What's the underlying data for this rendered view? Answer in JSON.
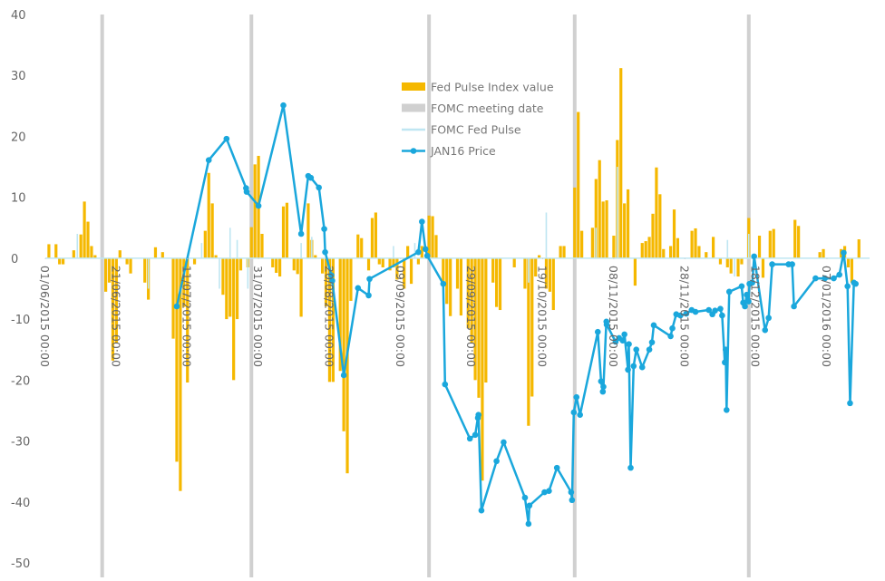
{
  "chart_data": {
    "type": "combo",
    "xlim": [
      "2015-06-01",
      "2016-01-19"
    ],
    "xticks": [
      {
        "value": "2015-06-01",
        "label": "01/06/2015 00:00"
      },
      {
        "value": "2015-06-21",
        "label": "21/06/2015 00:00"
      },
      {
        "value": "2015-07-11",
        "label": "11/07/2015 00:00"
      },
      {
        "value": "2015-07-31",
        "label": "31/07/2015 00:00"
      },
      {
        "value": "2015-08-20",
        "label": "20/08/2015 00:00"
      },
      {
        "value": "2015-09-09",
        "label": "09/09/2015 00:00"
      },
      {
        "value": "2015-09-29",
        "label": "29/09/2015 00:00"
      },
      {
        "value": "2015-10-19",
        "label": "19/10/2015 00:00"
      },
      {
        "value": "2015-11-08",
        "label": "08/11/2015 00:00"
      },
      {
        "value": "2015-11-28",
        "label": "28/11/2015 00:00"
      },
      {
        "value": "2015-12-18",
        "label": "18/12/2015 00:00"
      },
      {
        "value": "2016-01-07",
        "label": "07/01/2016 00:00"
      }
    ],
    "ylim": [
      -50,
      40
    ],
    "yticks": [
      -50,
      -40,
      -30,
      -20,
      -10,
      0,
      10,
      20,
      30,
      40
    ],
    "series": [
      {
        "name": "Fed Pulse Index value",
        "type": "bar",
        "color": "#f5b800",
        "x": [
          "2015-06-02",
          "2015-06-04",
          "2015-06-05",
          "2015-06-06",
          "2015-06-09",
          "2015-06-11",
          "2015-06-12",
          "2015-06-13",
          "2015-06-14",
          "2015-06-15",
          "2015-06-18",
          "2015-06-19",
          "2015-06-20",
          "2015-06-21",
          "2015-06-22",
          "2015-06-24",
          "2015-06-25",
          "2015-06-29",
          "2015-06-30",
          "2015-07-02",
          "2015-07-04",
          "2015-07-07",
          "2015-07-08",
          "2015-07-09",
          "2015-07-10",
          "2015-07-11",
          "2015-07-13",
          "2015-07-16",
          "2015-07-17",
          "2015-07-18",
          "2015-07-19",
          "2015-07-21",
          "2015-07-22",
          "2015-07-23",
          "2015-07-24",
          "2015-07-25",
          "2015-07-26",
          "2015-07-28",
          "2015-07-29",
          "2015-07-30",
          "2015-07-31",
          "2015-08-01",
          "2015-08-04",
          "2015-08-05",
          "2015-08-06",
          "2015-08-07",
          "2015-08-08",
          "2015-08-10",
          "2015-08-11",
          "2015-08-12",
          "2015-08-14",
          "2015-08-15",
          "2015-08-16",
          "2015-08-18",
          "2015-08-19",
          "2015-08-20",
          "2015-08-21",
          "2015-08-23",
          "2015-08-24",
          "2015-08-25",
          "2015-08-26",
          "2015-08-28",
          "2015-08-29",
          "2015-08-31",
          "2015-09-01",
          "2015-09-02",
          "2015-09-03",
          "2015-09-04",
          "2015-09-06",
          "2015-09-07",
          "2015-09-08",
          "2015-09-10",
          "2015-09-11",
          "2015-09-12",
          "2015-09-14",
          "2015-09-15",
          "2015-09-17",
          "2015-09-18",
          "2015-09-19",
          "2015-09-21",
          "2015-09-22",
          "2015-09-23",
          "2015-09-25",
          "2015-09-26",
          "2015-09-28",
          "2015-09-29",
          "2015-09-30",
          "2015-10-01",
          "2015-10-02",
          "2015-10-03",
          "2015-10-05",
          "2015-10-06",
          "2015-10-07",
          "2015-10-11",
          "2015-10-14",
          "2015-10-15",
          "2015-10-16",
          "2015-10-17",
          "2015-10-18",
          "2015-10-20",
          "2015-10-21",
          "2015-10-22",
          "2015-10-24",
          "2015-10-25",
          "2015-10-28",
          "2015-10-29",
          "2015-10-30",
          "2015-11-02",
          "2015-11-03",
          "2015-11-04",
          "2015-11-05",
          "2015-11-06",
          "2015-11-08",
          "2015-11-09",
          "2015-11-10",
          "2015-11-11",
          "2015-11-12",
          "2015-11-14",
          "2015-11-16",
          "2015-11-17",
          "2015-11-18",
          "2015-11-19",
          "2015-11-20",
          "2015-11-21",
          "2015-11-22",
          "2015-11-24",
          "2015-11-25",
          "2015-11-26",
          "2015-11-30",
          "2015-12-01",
          "2015-12-02",
          "2015-12-04",
          "2015-12-06",
          "2015-12-08",
          "2015-12-10",
          "2015-12-11",
          "2015-12-13",
          "2015-12-14",
          "2015-12-16",
          "2015-12-19",
          "2015-12-20",
          "2015-12-22",
          "2015-12-23",
          "2015-12-29",
          "2015-12-30",
          "2016-01-05",
          "2016-01-06",
          "2016-01-11",
          "2016-01-12",
          "2016-01-13",
          "2016-01-14",
          "2016-01-16"
        ],
        "values": [
          2.3,
          2.3,
          -1,
          -1,
          1.3,
          3.9,
          9.3,
          6,
          2,
          0.5,
          -5.5,
          -4,
          -16.8,
          -14,
          1.3,
          -1,
          -2.5,
          -4,
          -6.8,
          1.8,
          1,
          -13.2,
          -33.4,
          -38.2,
          -8,
          -20.4,
          -1,
          4.5,
          14,
          9,
          0.5,
          -6,
          -10,
          -9.6,
          -20,
          -10,
          -2,
          -1.5,
          5.1,
          15.4,
          16.8,
          4,
          -1.5,
          -2.4,
          -3,
          8.5,
          9.1,
          -2,
          -2.6,
          -9.6,
          9,
          3,
          0.5,
          -2.5,
          -7.9,
          -20.3,
          -20.3,
          -18.5,
          -28.4,
          -35.3,
          -7,
          3.9,
          3.3,
          -2,
          6.6,
          7.5,
          -1,
          -1.5,
          -2,
          -1.5,
          -3.5,
          -5,
          2,
          -4.2,
          -1,
          2,
          7,
          6.9,
          3.8,
          -4.5,
          -7.5,
          -9.5,
          -5,
          -9.4,
          -11.5,
          -14,
          -20,
          -22.9,
          -36.5,
          -20.4,
          -4,
          -8,
          -8.5,
          -1.5,
          -5,
          -27.5,
          -22.7,
          -3,
          0.5,
          -5,
          -5.5,
          -8.5,
          2,
          2,
          11.6,
          24,
          4.5,
          5,
          13,
          16.1,
          9.3,
          9.5,
          3.7,
          19.4,
          31.2,
          9,
          11.3,
          -4.5,
          2.5,
          2.8,
          3.5,
          7.3,
          14.9,
          10.5,
          1.5,
          2,
          8,
          3.3,
          4.5,
          4.9,
          2,
          1,
          3.5,
          -1,
          -1.5,
          -2.5,
          -3,
          -1,
          6.6,
          3.7,
          -3.2,
          4.5,
          4.8,
          6.3,
          5.3,
          1,
          1.5,
          1.5,
          2,
          -1.5,
          -4,
          3.1
        ]
      },
      {
        "name": "FOMC meeting date",
        "type": "vline",
        "color": "#d0d0d0",
        "x": [
          "2015-06-17",
          "2015-07-29",
          "2015-09-17",
          "2015-10-28",
          "2015-12-16"
        ]
      },
      {
        "name": "FOMC Fed Pulse",
        "type": "thinbar",
        "color": "#bfe6f2",
        "x": [
          "2015-06-10",
          "2015-06-30",
          "2015-07-15",
          "2015-07-20",
          "2015-07-23",
          "2015-07-25",
          "2015-07-28",
          "2015-08-12",
          "2015-08-15",
          "2015-09-07",
          "2015-09-13",
          "2015-10-15",
          "2015-10-20",
          "2015-11-03",
          "2015-11-09",
          "2015-12-10",
          "2015-12-12",
          "2015-12-16"
        ],
        "values": [
          4,
          -5,
          2.5,
          -5,
          5,
          3,
          -5,
          2.5,
          3.5,
          2,
          2.5,
          -4,
          7.5,
          5,
          15,
          3,
          -3,
          4
        ]
      },
      {
        "name": "JAN16 Price",
        "type": "line",
        "color": "#1aa7dc",
        "x": [
          "2015-07-08",
          "2015-07-17",
          "2015-07-22",
          "2015-07-27T12:00",
          "2015-07-27T16:00",
          "2015-07-31",
          "2015-08-07",
          "2015-08-12",
          "2015-08-14",
          "2015-08-14T18:00",
          "2015-08-17",
          "2015-08-18T12:00",
          "2015-08-18T18:00",
          "2015-08-20T12:00",
          "2015-08-20T18:00",
          "2015-08-24",
          "2015-08-28",
          "2015-08-31",
          "2015-08-31T06:00",
          "2015-09-14",
          "2015-09-15",
          "2015-09-16",
          "2015-09-16T12:00",
          "2015-09-21",
          "2015-09-21T12:00",
          "2015-09-28T12:00",
          "2015-09-30",
          "2015-09-30T18:00",
          "2015-09-30T22:00",
          "2015-10-01T18:00",
          "2015-10-06",
          "2015-10-08",
          "2015-10-14",
          "2015-10-15",
          "2015-10-15T06:00",
          "2015-10-19T12:00",
          "2015-10-20T18:00",
          "2015-10-23",
          "2015-10-27",
          "2015-10-27T06:00",
          "2015-10-27T18:00",
          "2015-10-28T12:00",
          "2015-10-29T12:00",
          "2015-11-03T12:00",
          "2015-11-04T10:00",
          "2015-11-04T22:00",
          "2015-11-05T02:00",
          "2015-11-05T22:00",
          "2015-11-06",
          "2015-11-08T12:00",
          "2015-11-09T12:00",
          "2015-11-10T12:00",
          "2015-11-11",
          "2015-11-12",
          "2015-11-12T06:00",
          "2015-11-12T18:00",
          "2015-11-13T14:00",
          "2015-11-14T08:00",
          "2015-11-16",
          "2015-11-18",
          "2015-11-18T18:00",
          "2015-11-19T06:00",
          "2015-11-24",
          "2015-11-24T12:00",
          "2015-11-25T14:00",
          "2015-11-26T18:00",
          "2015-11-28T10:00",
          "2015-11-29T22:00",
          "2015-12-01",
          "2015-12-04T18:00",
          "2015-12-05T18:00",
          "2015-12-06T12:00",
          "2015-12-08",
          "2015-12-08T12:00",
          "2015-12-09T06:00",
          "2015-12-09T12:00",
          "2015-12-09T18:00",
          "2015-12-10T12:00",
          "2015-12-14",
          "2015-12-14T10:00",
          "2015-12-14T22:00",
          "2015-12-15T10:00",
          "2015-12-15T22:00",
          "2015-12-16T05:00",
          "2015-12-17",
          "2015-12-17T12:00",
          "2015-12-20T14:00",
          "2015-12-21T14:00",
          "2015-12-22T14:00",
          "2015-12-27T05:00",
          "2015-12-28T05:00",
          "2015-12-28T17:00",
          "2016-01-03T19:00",
          "2016-01-06T10:00",
          "2016-01-08T22:00",
          "2016-01-10T12:00",
          "2016-01-11T17:00",
          "2016-01-12T19:00",
          "2016-01-13T12:00",
          "2016-01-14T14:00",
          "2016-01-15T02:00"
        ],
        "values": [
          -7.9,
          16.1,
          19.6,
          11.5,
          10.9,
          8.6,
          25.1,
          4,
          13.5,
          13.2,
          11.6,
          4.8,
          1,
          -2.8,
          -3.7,
          -19.2,
          -4.9,
          -6.1,
          -3.4,
          1,
          6,
          1.5,
          0.4,
          -4.2,
          -20.7,
          -29.6,
          -29,
          -26.2,
          -25.7,
          -41.4,
          -33.3,
          -30.2,
          -39.3,
          -43.6,
          -40.6,
          -38.4,
          -38.2,
          -34.4,
          -38.4,
          -39.7,
          -25.3,
          -22.8,
          -25.7,
          -12.1,
          -20.2,
          -21.9,
          -21.1,
          -10.4,
          -10.9,
          -13.7,
          -13.1,
          -13.5,
          -12.5,
          -18.3,
          -14.1,
          -34.4,
          -17.7,
          -15,
          -17.9,
          -15,
          -13.8,
          -11,
          -12.8,
          -11.5,
          -9.2,
          -9.4,
          -9.1,
          -8.5,
          -8.8,
          -8.5,
          -9.2,
          -8.6,
          -8.3,
          -9.4,
          -17.1,
          -15,
          -24.9,
          -5.5,
          -4.6,
          -7.3,
          -7.9,
          -6,
          -7.1,
          -4.2,
          -4,
          0.3,
          -11.8,
          -9.8,
          -1,
          -1,
          -1,
          -7.9,
          -3.3,
          -3.3,
          -3.3,
          -2.7,
          0.9,
          -4.6,
          -23.8,
          -4,
          -4.2
        ]
      }
    ]
  }
}
